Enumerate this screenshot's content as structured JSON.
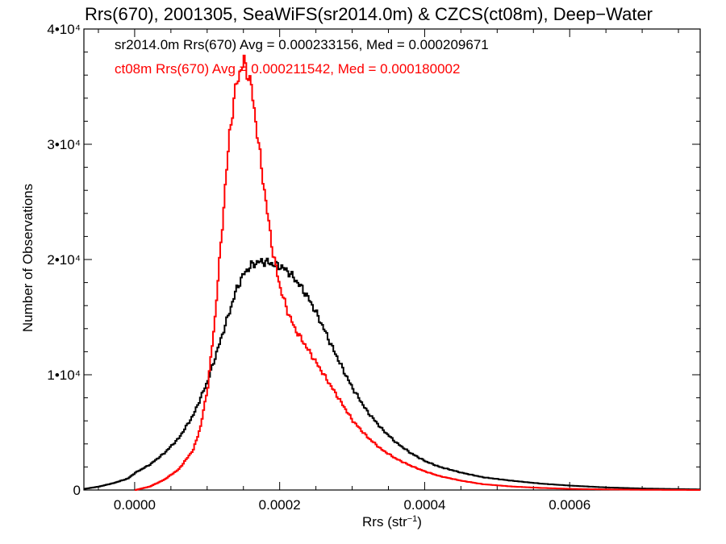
{
  "chart_data": {
    "type": "line",
    "title": "Rrs(670), 2001305, SeaWiFS(sr2014.0m) & CZCS(ct08m), Deep−Water",
    "xlabel": "Rrs (str⁻¹)",
    "ylabel": "Number of Observations",
    "xlim": [
      -7e-05,
      0.00078
    ],
    "ylim": [
      0,
      40000
    ],
    "x_ticks": [
      {
        "value": 0.0,
        "label": "0.0000"
      },
      {
        "value": 0.0002,
        "label": "0.0002"
      },
      {
        "value": 0.0004,
        "label": "0.0004"
      },
      {
        "value": 0.0006,
        "label": "0.0006"
      }
    ],
    "y_ticks": [
      {
        "value": 0,
        "label": "0"
      },
      {
        "value": 10000,
        "label": "1•10⁴"
      },
      {
        "value": 20000,
        "label": "2•10⁴"
      },
      {
        "value": 30000,
        "label": "3•10⁴"
      },
      {
        "value": 40000,
        "label": "4•10⁴"
      }
    ],
    "grid": false,
    "legend_position": "top-left",
    "series": [
      {
        "name": "sr2014.0m Rrs(670) Avg = 0.000233156, Med = 0.000209671",
        "color": "#000000",
        "x": [
          -7e-05,
          -5e-05,
          -3e-05,
          -1e-05,
          0.0,
          2e-05,
          4e-05,
          6e-05,
          8e-05,
          0.0001,
          0.00011,
          0.00012,
          0.00013,
          0.00014,
          0.00015,
          0.00016,
          0.00017,
          0.00018,
          0.00019,
          0.0002,
          0.00021,
          0.00022,
          0.00023,
          0.00024,
          0.00025,
          0.00026,
          0.00027,
          0.00028,
          0.00029,
          0.0003,
          0.00032,
          0.00034,
          0.00036,
          0.00038,
          0.0004,
          0.00042,
          0.00045,
          0.00048,
          0.00052,
          0.00056,
          0.0006,
          0.00065,
          0.0007,
          0.00078
        ],
        "y": [
          100,
          300,
          600,
          1000,
          1500,
          2200,
          3200,
          4500,
          6500,
          9500,
          11500,
          13500,
          15500,
          17500,
          18800,
          19500,
          19800,
          19800,
          19600,
          19400,
          19000,
          18300,
          17500,
          16500,
          15300,
          14000,
          12600,
          11300,
          10000,
          8800,
          6800,
          5300,
          4100,
          3200,
          2500,
          2000,
          1500,
          1100,
          800,
          550,
          380,
          220,
          130,
          50
        ]
      },
      {
        "name": "ct08m Rrs(670) Avg = 0.000211542, Med = 0.000180002",
        "color": "#ff0000",
        "x": [
          0.0,
          2e-05,
          4e-05,
          6e-05,
          8e-05,
          9e-05,
          0.0001,
          0.00011,
          0.00012,
          0.00013,
          0.00014,
          0.00015,
          0.00016,
          0.00017,
          0.00018,
          0.00019,
          0.0002,
          0.00021,
          0.00022,
          0.00023,
          0.00024,
          0.00025,
          0.00026,
          0.00027,
          0.00028,
          0.00029,
          0.0003,
          0.00032,
          0.00034,
          0.00036,
          0.00038,
          0.0004,
          0.00042,
          0.00045,
          0.00048,
          0.00052,
          0.00056,
          0.0006,
          0.00065,
          0.0007,
          0.00078
        ],
        "y": [
          0,
          300,
          900,
          1800,
          3500,
          5500,
          9000,
          15000,
          23000,
          31000,
          35500,
          37200,
          35000,
          30000,
          25000,
          20500,
          17500,
          15500,
          14000,
          13000,
          12000,
          11000,
          10000,
          9000,
          8000,
          7000,
          6000,
          4600,
          3500,
          2700,
          2100,
          1600,
          1200,
          800,
          500,
          300,
          180,
          100,
          50,
          20,
          0
        ]
      }
    ]
  }
}
